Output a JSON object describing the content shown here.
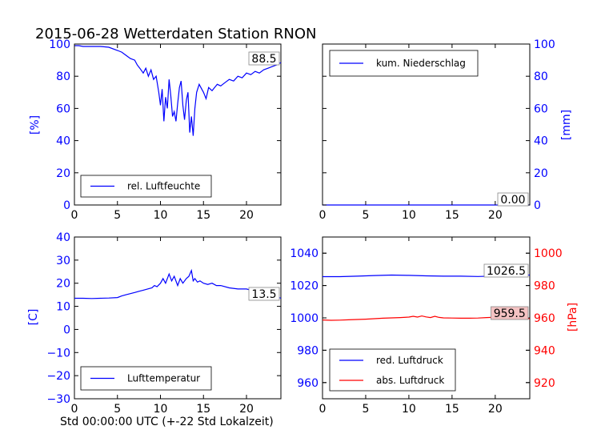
{
  "title": "2015-06-28 Wetterdaten Station RNON",
  "xlabel": "Std 00:00:00 UTC (+-22 Std Lokalzeit)",
  "colors": {
    "blue": "#0000ff",
    "red": "#ff0000",
    "axis": "#000000",
    "badge_red": "#f4c2c2"
  },
  "chart_data": [
    {
      "type": "line",
      "id": "humidity",
      "ylabel": "[%]",
      "xlim": [
        0,
        24
      ],
      "ylim": [
        0,
        100
      ],
      "xticks": [
        "0",
        "5",
        "10",
        "15",
        "20"
      ],
      "yticks": [
        "0",
        "20",
        "40",
        "60",
        "80",
        "100"
      ],
      "legend_position": "lower-left",
      "series": [
        {
          "name": "rel. Luftfeuchte",
          "color": "#0000ff",
          "x": [
            0,
            0.5,
            1,
            2,
            3,
            4,
            5,
            5.5,
            6,
            6.5,
            7,
            7.3,
            7.6,
            8,
            8.3,
            8.6,
            8.9,
            9.2,
            9.5,
            9.8,
            10,
            10.2,
            10.4,
            10.6,
            10.8,
            11,
            11.2,
            11.4,
            11.6,
            11.8,
            12,
            12.2,
            12.4,
            12.6,
            12.8,
            13,
            13.2,
            13.4,
            13.6,
            13.8,
            14,
            14.2,
            14.5,
            14.8,
            15,
            15.3,
            15.6,
            16,
            16.3,
            16.6,
            17,
            17.5,
            18,
            18.5,
            19,
            19.5,
            20,
            20.5,
            21,
            21.5,
            22,
            22.5,
            23,
            23.5,
            24
          ],
          "y": [
            99,
            99,
            98.5,
            98.5,
            98.5,
            98,
            96,
            95,
            93,
            91,
            90,
            87,
            85,
            82,
            85,
            80,
            84,
            78,
            80,
            70,
            62,
            72,
            52,
            67,
            60,
            78,
            68,
            55,
            58,
            52,
            63,
            73,
            77,
            62,
            53,
            65,
            70,
            45,
            55,
            43,
            60,
            70,
            75,
            72,
            70,
            66,
            73,
            71,
            73,
            75,
            74,
            76,
            78,
            77,
            80,
            79,
            82,
            81,
            83,
            82,
            84,
            85,
            86,
            87,
            88.5
          ]
        }
      ],
      "badge": {
        "text": "88.5"
      }
    },
    {
      "type": "line",
      "id": "precipitation",
      "ylabel": "[mm]",
      "xlim": [
        0,
        24
      ],
      "ylim": [
        0,
        100
      ],
      "xticks": [
        "0",
        "5",
        "10",
        "15",
        "20"
      ],
      "yticks": [
        "0",
        "20",
        "40",
        "60",
        "80",
        "100"
      ],
      "legend_position": "top-left",
      "series": [
        {
          "name": "kum. Niederschlag",
          "color": "#0000ff",
          "x": [
            0,
            24
          ],
          "y": [
            0,
            0
          ]
        }
      ],
      "badge": {
        "text": "0.00"
      }
    },
    {
      "type": "line",
      "id": "temperature",
      "ylabel": "[C]",
      "xlim": [
        0,
        24
      ],
      "ylim": [
        -30,
        40
      ],
      "xticks": [
        "0",
        "5",
        "10",
        "15",
        "20"
      ],
      "yticks": [
        "−30",
        "−20",
        "−10",
        "0",
        "10",
        "20",
        "30",
        "40"
      ],
      "legend_position": "lower-left",
      "series": [
        {
          "name": "Lufttemperatur",
          "color": "#0000ff",
          "x": [
            0,
            1,
            2,
            3,
            4,
            5,
            5.5,
            6,
            6.5,
            7,
            7.5,
            8,
            8.5,
            9,
            9.3,
            9.6,
            10,
            10.3,
            10.6,
            11,
            11.3,
            11.6,
            12,
            12.3,
            12.6,
            13,
            13.3,
            13.6,
            13.8,
            14,
            14.3,
            14.6,
            15,
            15.5,
            16,
            16.5,
            17,
            18,
            19,
            20,
            21,
            22,
            23,
            24
          ],
          "y": [
            13.5,
            13.5,
            13.4,
            13.5,
            13.6,
            13.8,
            14.5,
            15,
            15.5,
            16,
            16.5,
            17,
            17.5,
            18,
            19,
            18.5,
            20,
            22,
            20,
            24,
            21,
            23,
            19,
            22,
            20,
            22,
            23,
            25.5,
            21,
            22,
            20.5,
            21,
            20,
            19.5,
            20,
            19,
            19,
            18,
            17.5,
            17.5,
            16.5,
            15.5,
            15,
            13.5
          ]
        }
      ],
      "badge": {
        "text": "13.5"
      }
    },
    {
      "type": "line",
      "id": "pressure",
      "ylabel": "[hPa]",
      "xlim": [
        0,
        24
      ],
      "ylim_left": [
        950,
        1050
      ],
      "ylim_right": [
        910,
        1010
      ],
      "xticks": [
        "0",
        "5",
        "10",
        "15",
        "20"
      ],
      "yticks_left": [
        "960",
        "980",
        "1000",
        "1020",
        "1040"
      ],
      "yticks_right": [
        "920",
        "940",
        "960",
        "980",
        "1000"
      ],
      "legend_position": "lower-left",
      "series": [
        {
          "name": "red. Luftdruck",
          "color": "#0000ff",
          "axis": "left",
          "x": [
            0,
            2,
            4,
            6,
            8,
            10,
            12,
            14,
            16,
            18,
            20,
            22,
            24
          ],
          "y": [
            1025.5,
            1025.5,
            1025.8,
            1026.2,
            1026.5,
            1026.3,
            1026,
            1025.8,
            1025.8,
            1025.6,
            1025.9,
            1026.2,
            1026.5
          ]
        },
        {
          "name": "abs. Luftdruck",
          "color": "#ff0000",
          "axis": "right",
          "x": [
            0,
            1,
            2,
            3,
            4,
            5,
            6,
            7,
            8,
            9,
            10,
            10.5,
            11,
            11.5,
            12,
            12.5,
            13,
            13.5,
            14,
            15,
            16,
            17,
            18,
            19,
            20,
            21,
            22,
            23,
            24
          ],
          "y": [
            958.7,
            958.5,
            958.6,
            958.8,
            959,
            959.2,
            959.5,
            959.8,
            960,
            960.2,
            960.5,
            961,
            960.5,
            961.2,
            960.6,
            960.2,
            961,
            960.3,
            960,
            959.9,
            959.8,
            959.8,
            959.9,
            960.2,
            960.4,
            960.2,
            960.4,
            960.2,
            959.5
          ]
        }
      ],
      "badges": [
        {
          "text": "1026.5",
          "style": "white"
        },
        {
          "text": "959.5",
          "style": "red"
        }
      ]
    }
  ]
}
